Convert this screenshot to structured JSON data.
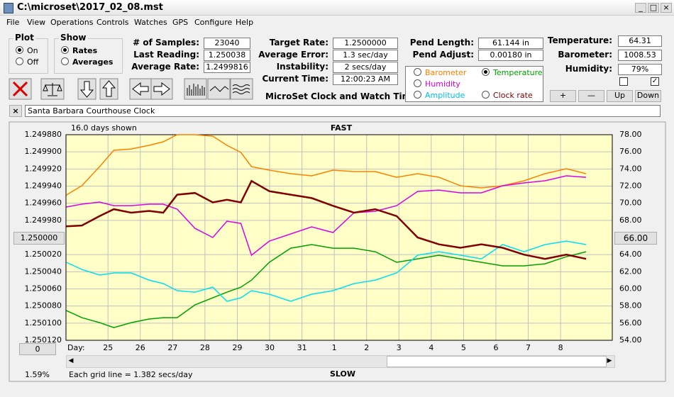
{
  "window": {
    "title": "C:\\microset\\2017_02_08.mst"
  },
  "menu": [
    "File",
    "View",
    "Operations",
    "Controls",
    "Watches",
    "GPS",
    "Configure",
    "Help"
  ],
  "plot": {
    "title": "Plot",
    "options": [
      "On",
      "Off"
    ],
    "selected": 0
  },
  "show": {
    "title": "Show",
    "options": [
      "Rates",
      "Averages"
    ],
    "selected": 0
  },
  "fields_left": [
    {
      "label": "# of Samples:",
      "value": "23040"
    },
    {
      "label": "Last Reading:",
      "value": "1.250038"
    },
    {
      "label": "Average Rate:",
      "value": "1.2499816"
    }
  ],
  "fields_mid": [
    {
      "label": "Target Rate:",
      "value": "1.2500000"
    },
    {
      "label": "Average Error:",
      "value": "1.3 sec/day"
    },
    {
      "label": "Instability:",
      "value": "2 secs/day"
    },
    {
      "label": "Current Time:",
      "value": "12:00:23 AM"
    }
  ],
  "fields_pend": [
    {
      "label": "Pend Length:",
      "value": "61.144 in"
    },
    {
      "label": "Pend Adjust:",
      "value": "0.00180 in"
    }
  ],
  "fields_env": [
    {
      "label": "Temperature:",
      "value": "64.31"
    },
    {
      "label": "Barometer:",
      "value": "1008.53"
    },
    {
      "label": "Humidity:",
      "value": "79%"
    }
  ],
  "app_name": "MicroSet Clock and Watch Timer",
  "graph_select": [
    {
      "label": "Barometer",
      "color": "#ff8000"
    },
    {
      "label": "Temperature",
      "color": "#00a000"
    },
    {
      "label": "Humidity",
      "color": "#e000e0"
    },
    {
      "label": "Amplitude",
      "color": "#00c0e0"
    },
    {
      "label": "Clock rate",
      "color": "#800000"
    }
  ],
  "adjust_buttons": [
    "+",
    "—",
    "Up",
    "Down"
  ],
  "clock_name": "Santa Barbara Courthouse Clock",
  "chart": {
    "type": "line",
    "top_label": "FAST",
    "bottom_label": "SLOW",
    "days_shown": "16.0 days shown",
    "x_label": "Day:",
    "center_left": "1.250000",
    "center_right": "66.00",
    "scroll_value": "0",
    "xlim": [
      -1.3,
      15.6
    ],
    "xticks": [
      {
        "value": 0,
        "label": "25"
      },
      {
        "value": 1,
        "label": "26"
      },
      {
        "value": 2,
        "label": "27"
      },
      {
        "value": 3,
        "label": "28"
      },
      {
        "value": 4,
        "label": "29"
      },
      {
        "value": 5,
        "label": "30"
      },
      {
        "value": 6,
        "label": "31"
      },
      {
        "value": 7,
        "label": "1"
      },
      {
        "value": 8,
        "label": "2"
      },
      {
        "value": 9,
        "label": "3"
      },
      {
        "value": 10,
        "label": "4"
      },
      {
        "value": 11,
        "label": "5"
      },
      {
        "value": 12,
        "label": "6"
      },
      {
        "value": 13,
        "label": "7"
      },
      {
        "value": 14,
        "label": "8"
      }
    ],
    "ylim": [
      1.25012,
      1.24988
    ],
    "yticks": [
      {
        "value": 1.24988,
        "label": "1.249880"
      },
      {
        "value": 1.2499,
        "label": "1.249900"
      },
      {
        "value": 1.24992,
        "label": "1.249920"
      },
      {
        "value": 1.24994,
        "label": "1.249940"
      },
      {
        "value": 1.24996,
        "label": "1.249960"
      },
      {
        "value": 1.24998,
        "label": "1.249980"
      },
      {
        "value": 1.25002,
        "label": "1.250020"
      },
      {
        "value": 1.25004,
        "label": "1.250040"
      },
      {
        "value": 1.25006,
        "label": "1.250060"
      },
      {
        "value": 1.25008,
        "label": "1.250080"
      },
      {
        "value": 1.2501,
        "label": "1.250100"
      },
      {
        "value": 1.25012,
        "label": "1.250120"
      }
    ],
    "y2lim": [
      54,
      78
    ],
    "y2ticks": [
      {
        "value": 78,
        "label": "78.00"
      },
      {
        "value": 76,
        "label": "76.00"
      },
      {
        "value": 74,
        "label": "74.00"
      },
      {
        "value": 72,
        "label": "72.00"
      },
      {
        "value": 70,
        "label": "70.00"
      },
      {
        "value": 68,
        "label": "68.00"
      },
      {
        "value": 64,
        "label": "64.00"
      },
      {
        "value": 62,
        "label": "62.00"
      },
      {
        "value": 60,
        "label": "60.00"
      },
      {
        "value": 58,
        "label": "58.00"
      },
      {
        "value": 56,
        "label": "56.00"
      },
      {
        "value": 54,
        "label": "54.00"
      }
    ],
    "grid": true,
    "x": [
      -1.29,
      -0.81,
      -0.26,
      0.18,
      0.72,
      1.27,
      1.71,
      2.14,
      2.69,
      3.24,
      3.68,
      4.11,
      4.44,
      4.99,
      5.65,
      6.3,
      6.96,
      7.61,
      8.27,
      8.93,
      9.58,
      10.24,
      10.9,
      11.55,
      12.21,
      12.87,
      13.52,
      14.18,
      14.79
    ],
    "series": [
      {
        "color": "#ff8000",
        "axis": "y2",
        "values": [
          70.96,
          72.04,
          74.27,
          76.18,
          76.34,
          76.76,
          77.17,
          78,
          78,
          77.83,
          76.76,
          75.93,
          74.27,
          73.86,
          73.45,
          73.2,
          73.86,
          73.7,
          73.7,
          73.03,
          73.45,
          73.03,
          72.04,
          71.79,
          72.04,
          72.62,
          73.45,
          74.03,
          73.45
        ]
      },
      {
        "color": "#e000e0",
        "axis": "y2",
        "values": [
          69.56,
          69.89,
          70.14,
          69.72,
          69.72,
          69.89,
          69.89,
          69.31,
          67.07,
          66.0,
          67.9,
          67.65,
          63.93,
          65.58,
          66.41,
          67.24,
          66.58,
          68.89,
          69.06,
          69.72,
          71.38,
          71.54,
          71.21,
          71.21,
          72.04,
          72.37,
          72.62,
          73.2,
          73.03
        ]
      },
      {
        "color": "#00a000",
        "axis": "y2",
        "values": [
          57.47,
          56.64,
          56.06,
          55.48,
          56.06,
          56.48,
          56.64,
          56.64,
          58.13,
          58.96,
          59.62,
          60.2,
          61.03,
          63.1,
          64.75,
          65.17,
          64.75,
          64.75,
          64.34,
          63.1,
          63.51,
          63.93,
          63.51,
          63.1,
          62.69,
          62.69,
          62.93,
          63.76,
          64.34
        ]
      },
      {
        "color": "#00e0f0",
        "axis": "y2",
        "values": [
          63.1,
          62.27,
          61.61,
          61.86,
          61.86,
          61.03,
          60.62,
          59.79,
          59.62,
          60.2,
          58.55,
          58.96,
          59.79,
          59.38,
          58.55,
          59.38,
          59.79,
          60.62,
          61.03,
          61.86,
          63.93,
          64.34,
          63.93,
          63.51,
          65.17,
          64.34,
          65.17,
          65.58,
          65.17
        ]
      },
      {
        "color": "#800000",
        "axis": "y",
        "values": [
          1.249987,
          1.249986,
          1.249975,
          1.249967,
          1.249971,
          1.249969,
          1.249971,
          1.24995,
          1.249948,
          1.249959,
          1.249956,
          1.249959,
          1.249934,
          1.249946,
          1.24995,
          1.249954,
          1.249963,
          1.249971,
          1.249967,
          1.249975,
          1.25,
          1.250008,
          1.250012,
          1.250008,
          1.250012,
          1.25002,
          1.250025,
          1.25002,
          1.250025
        ]
      }
    ]
  },
  "status": {
    "percent": "1.59%",
    "grid_note": "Each grid line = 1.382 secs/day"
  }
}
